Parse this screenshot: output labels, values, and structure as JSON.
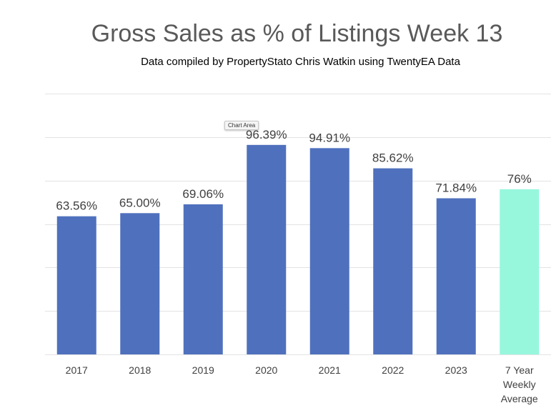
{
  "title": "Gross Sales as % of Listings Week 13",
  "subtitle": "Data compiled by PropertyStato Chris Watkin using TwentyEA Data",
  "tooltip": "Chart Area",
  "colors": {
    "bar": "#4f70bd",
    "highlight_bar": "#97f7dd",
    "gridline": "#e3e3e3",
    "label": "#404040",
    "title": "#595959"
  },
  "chart_data": {
    "type": "bar",
    "title": "Gross Sales as % of Listings Week 13",
    "subtitle": "Data compiled by PropertyStato Chris Watkin using TwentyEA Data",
    "categories": [
      "2017",
      "2018",
      "2019",
      "2020",
      "2021",
      "2022",
      "2023",
      "7 Year Weekly Average"
    ],
    "category_lines": [
      [
        "2017"
      ],
      [
        "2018"
      ],
      [
        "2019"
      ],
      [
        "2020"
      ],
      [
        "2021"
      ],
      [
        "2022"
      ],
      [
        "2023"
      ],
      [
        "7 Year",
        "Weekly",
        "Average"
      ]
    ],
    "values": [
      63.56,
      65.0,
      69.06,
      96.39,
      94.91,
      85.62,
      71.84,
      76
    ],
    "data_labels": [
      "63.56%",
      "65.00%",
      "69.06%",
      "96.39%",
      "94.91%",
      "85.62%",
      "71.84%",
      "76%"
    ],
    "highlight_index": 7,
    "xlabel": "",
    "ylabel": "",
    "ylim": [
      0,
      120
    ],
    "y_gridlines": [
      0,
      20,
      40,
      60,
      80,
      100,
      120
    ],
    "grid": true,
    "legend": "none",
    "y_tick_labels_visible": false
  }
}
